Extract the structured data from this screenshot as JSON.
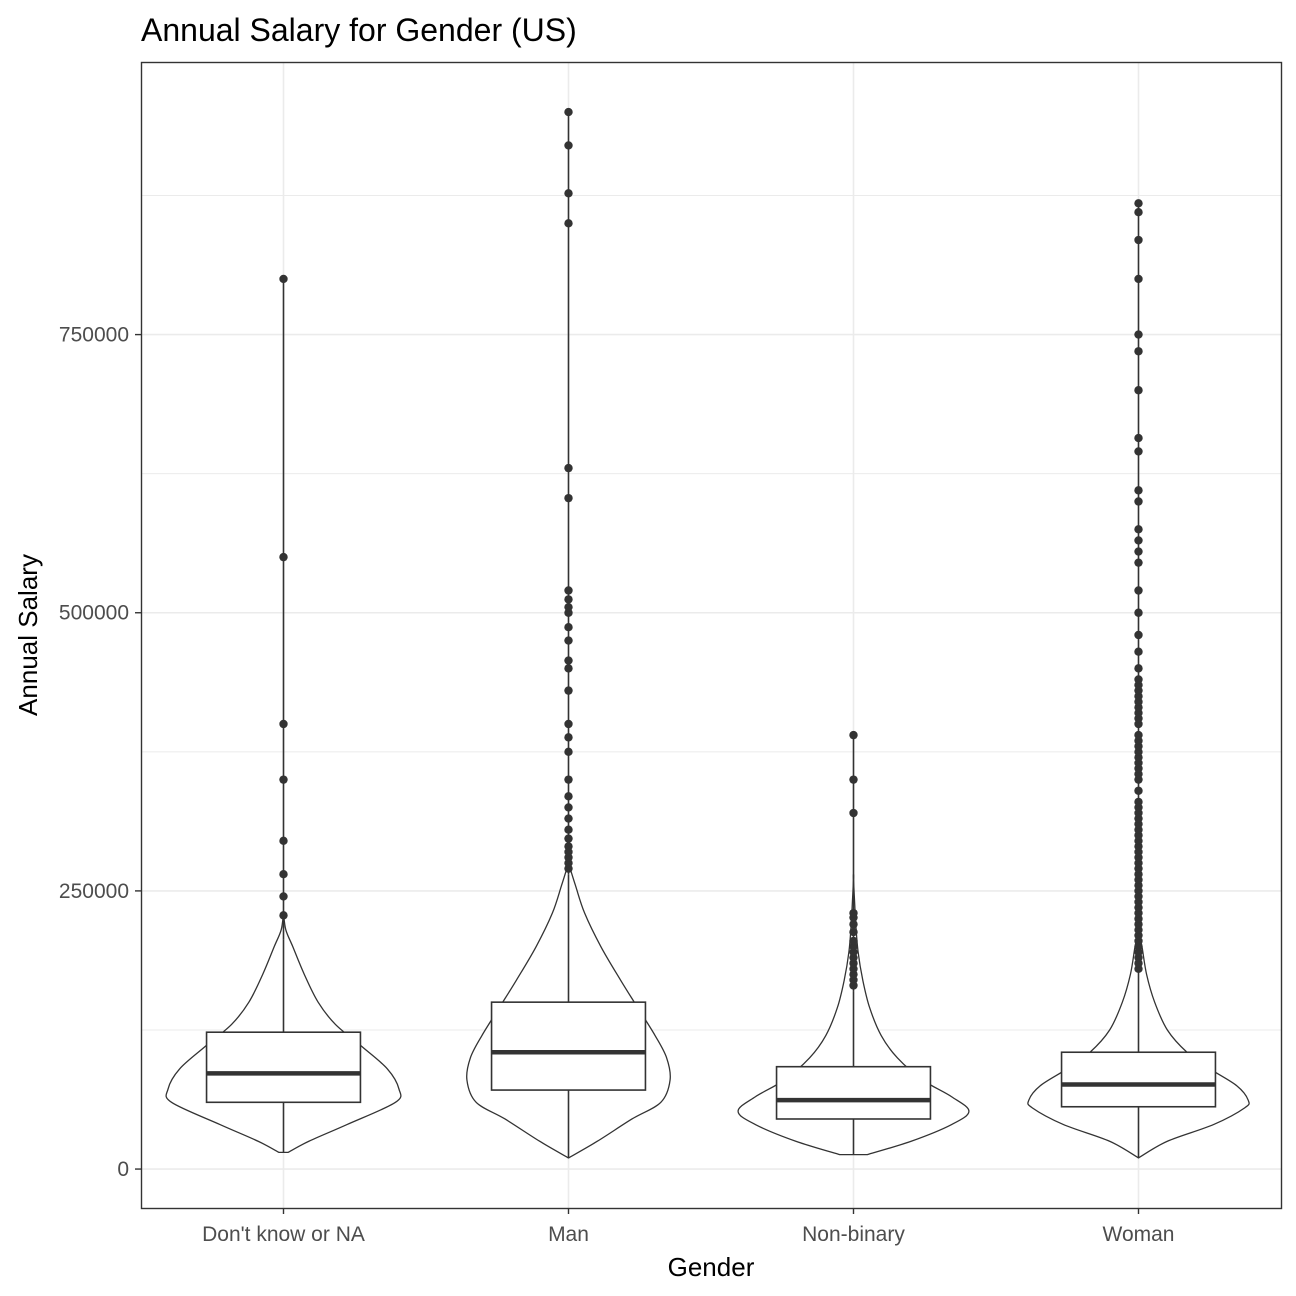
{
  "chart_data": {
    "type": "violin",
    "title": "Annual Salary for Gender (US)",
    "xlabel": "Gender",
    "ylabel": "Annual Salary",
    "categories": [
      "Don't know or NA",
      "Man",
      "Non-binary",
      "Woman"
    ],
    "yticks": [
      0,
      250000,
      500000,
      750000
    ],
    "ytick_labels": [
      "0",
      "250000",
      "500000",
      "750000"
    ],
    "ylim": [
      -35000,
      995000
    ],
    "grid": true,
    "legend": "none",
    "colors": {
      "outline": "#333333",
      "panel_border": "#333333",
      "grid": "#ebebeb",
      "background": "#ffffff"
    },
    "groups": [
      {
        "name": "Don't know or NA",
        "box": {
          "q1": 60000,
          "median": 86000,
          "q3": 123000,
          "whisker_low": 15000,
          "whisker_high": 206000
        },
        "violin": [
          [
            15000,
            0.04
          ],
          [
            25000,
            0.22
          ],
          [
            40000,
            0.55
          ],
          [
            60000,
            0.97
          ],
          [
            72000,
            1.0
          ],
          [
            90000,
            0.9
          ],
          [
            110000,
            0.68
          ],
          [
            130000,
            0.45
          ],
          [
            150000,
            0.3
          ],
          [
            175000,
            0.18
          ],
          [
            200000,
            0.08
          ],
          [
            215000,
            0.02
          ],
          [
            230000,
            0.0
          ]
        ],
        "outliers": [
          228000,
          245000,
          265000,
          295000,
          350000,
          400000,
          550000,
          800000
        ]
      },
      {
        "name": "Man",
        "box": {
          "q1": 71000,
          "median": 105000,
          "q3": 150000,
          "whisker_low": 10000,
          "whisker_high": 265000
        },
        "violin": [
          [
            10000,
            0.0
          ],
          [
            25000,
            0.25
          ],
          [
            45000,
            0.55
          ],
          [
            60000,
            0.8
          ],
          [
            80000,
            0.88
          ],
          [
            100000,
            0.85
          ],
          [
            120000,
            0.75
          ],
          [
            145000,
            0.6
          ],
          [
            170000,
            0.45
          ],
          [
            200000,
            0.28
          ],
          [
            230000,
            0.14
          ],
          [
            255000,
            0.06
          ],
          [
            275000,
            0.0
          ]
        ],
        "outliers": [
          270000,
          275000,
          280000,
          285000,
          290000,
          297000,
          305000,
          315000,
          325000,
          335000,
          350000,
          375000,
          388000,
          400000,
          430000,
          450000,
          457000,
          475000,
          487000,
          500000,
          505000,
          512000,
          520000,
          603000,
          630000,
          850000,
          877000,
          920000,
          950000
        ]
      },
      {
        "name": "Non-binary",
        "box": {
          "q1": 45000,
          "median": 62000,
          "q3": 92000,
          "whisker_low": 13000,
          "whisker_high": 160000
        },
        "violin": [
          [
            13000,
            0.12
          ],
          [
            25000,
            0.5
          ],
          [
            40000,
            0.85
          ],
          [
            52000,
            1.0
          ],
          [
            65000,
            0.85
          ],
          [
            80000,
            0.6
          ],
          [
            100000,
            0.38
          ],
          [
            120000,
            0.24
          ],
          [
            145000,
            0.14
          ],
          [
            170000,
            0.08
          ],
          [
            195000,
            0.04
          ],
          [
            220000,
            0.02
          ],
          [
            260000,
            0.0
          ]
        ],
        "outliers": [
          165000,
          170000,
          175000,
          180000,
          185000,
          190000,
          195000,
          200000,
          205000,
          213000,
          220000,
          226000,
          230000,
          320000,
          350000,
          390000
        ]
      },
      {
        "name": "Woman",
        "box": {
          "q1": 56000,
          "median": 76000,
          "q3": 105000,
          "whisker_low": 10000,
          "whisker_high": 177000
        },
        "violin": [
          [
            10000,
            0.0
          ],
          [
            25000,
            0.25
          ],
          [
            40000,
            0.65
          ],
          [
            55000,
            0.92
          ],
          [
            62000,
            0.95
          ],
          [
            75000,
            0.85
          ],
          [
            90000,
            0.62
          ],
          [
            105000,
            0.42
          ],
          [
            125000,
            0.25
          ],
          [
            150000,
            0.14
          ],
          [
            175000,
            0.07
          ],
          [
            200000,
            0.03
          ],
          [
            215000,
            0.0
          ]
        ],
        "outliers": [
          180000,
          185000,
          190000,
          195000,
          200000,
          205000,
          210000,
          215000,
          220000,
          225000,
          230000,
          235000,
          240000,
          245000,
          250000,
          255000,
          260000,
          265000,
          270000,
          275000,
          280000,
          285000,
          290000,
          295000,
          300000,
          305000,
          310000,
          315000,
          320000,
          325000,
          330000,
          340000,
          350000,
          355000,
          360000,
          365000,
          370000,
          375000,
          380000,
          385000,
          390000,
          400000,
          405000,
          410000,
          415000,
          420000,
          425000,
          430000,
          435000,
          440000,
          450000,
          465000,
          480000,
          500000,
          520000,
          545000,
          555000,
          565000,
          575000,
          600000,
          610000,
          645000,
          657000,
          700000,
          735000,
          750000,
          800000,
          835000,
          860000,
          868000
        ]
      }
    ]
  }
}
